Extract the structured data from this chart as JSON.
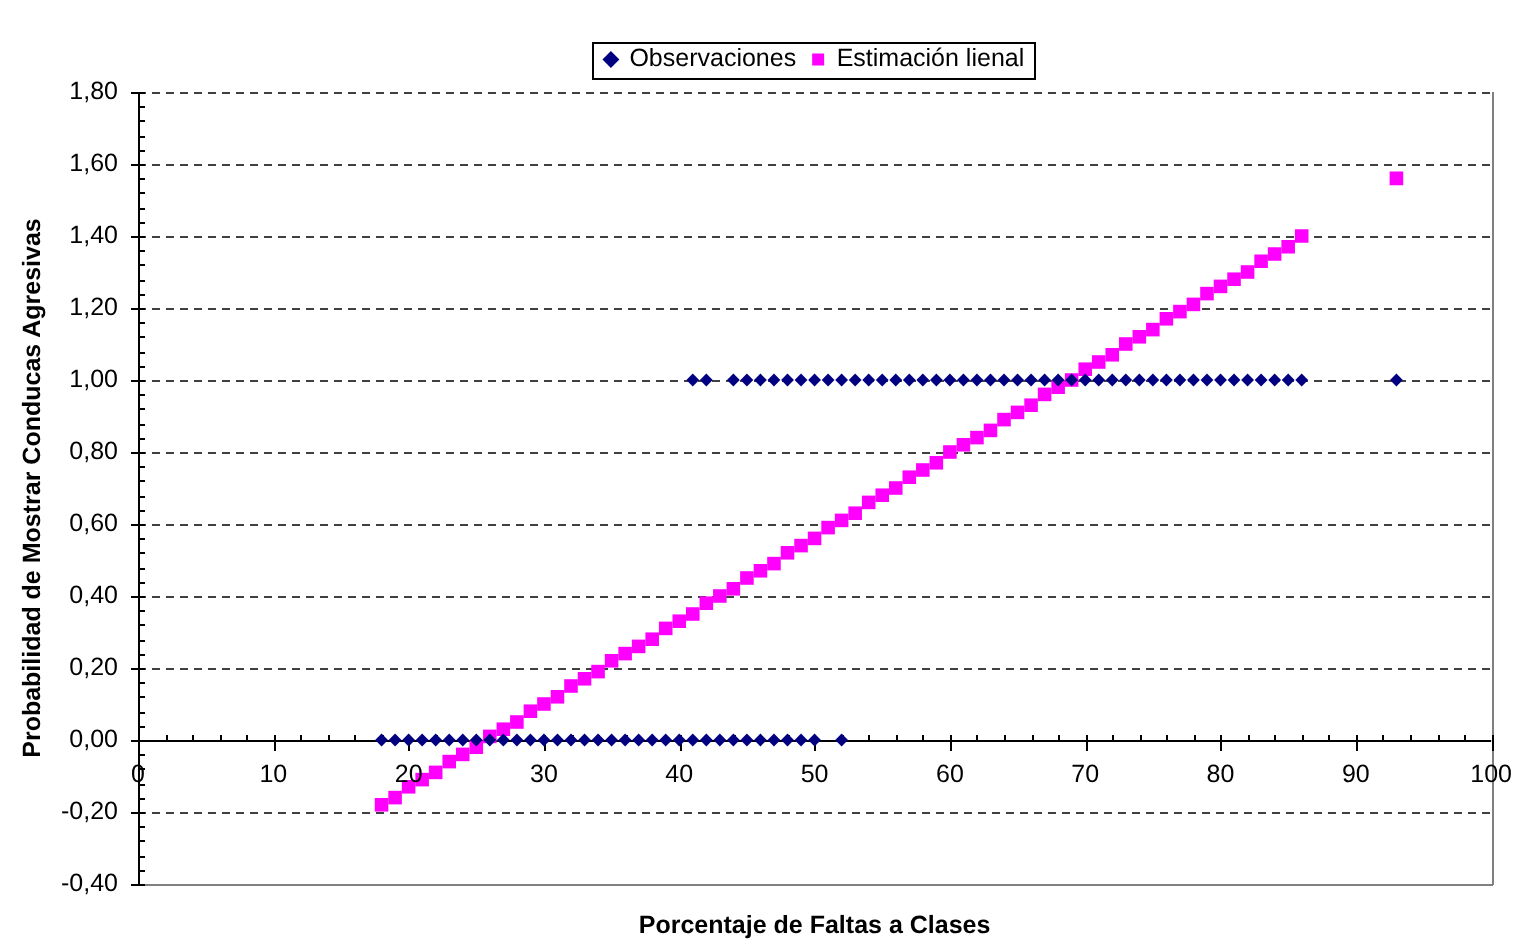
{
  "chart_data": {
    "type": "scatter",
    "legend": "top",
    "grid": "y",
    "xlabel": "Porcentaje de Faltas a Clases",
    "ylabel": "Probabilidad de Mostrar Conducas Agresivas",
    "xlim": [
      0,
      100
    ],
    "ylim": [
      -0.4,
      1.8
    ],
    "xticks": [
      0,
      {
        "value": 2,
        "label": null
      },
      {
        "value": 4,
        "label": null
      },
      {
        "value": 6,
        "label": null
      },
      {
        "value": 8,
        "label": null
      },
      10,
      {
        "value": 12,
        "label": null
      },
      {
        "value": 14,
        "label": null
      },
      {
        "value": 16,
        "label": null
      },
      {
        "value": 18,
        "label": null
      },
      20,
      {
        "value": 22,
        "label": null
      },
      {
        "value": 24,
        "label": null
      },
      {
        "value": 26,
        "label": null
      },
      {
        "value": 28,
        "label": null
      },
      30,
      {
        "value": 32,
        "label": null
      },
      {
        "value": 34,
        "label": null
      },
      {
        "value": 36,
        "label": null
      },
      {
        "value": 38,
        "label": null
      },
      40,
      {
        "value": 42,
        "label": null
      },
      {
        "value": 44,
        "label": null
      },
      {
        "value": 46,
        "label": null
      },
      {
        "value": 48,
        "label": null
      },
      50,
      {
        "value": 52,
        "label": null
      },
      {
        "value": 54,
        "label": null
      },
      {
        "value": 56,
        "label": null
      },
      {
        "value": 58,
        "label": null
      },
      60,
      {
        "value": 62,
        "label": null
      },
      {
        "value": 64,
        "label": null
      },
      {
        "value": 66,
        "label": null
      },
      {
        "value": 68,
        "label": null
      },
      70,
      {
        "value": 72,
        "label": null
      },
      {
        "value": 74,
        "label": null
      },
      {
        "value": 76,
        "label": null
      },
      {
        "value": 78,
        "label": null
      },
      80,
      {
        "value": 82,
        "label": null
      },
      {
        "value": 84,
        "label": null
      },
      {
        "value": 86,
        "label": null
      },
      {
        "value": 88,
        "label": null
      },
      90,
      {
        "value": 92,
        "label": null
      },
      {
        "value": 94,
        "label": null
      },
      {
        "value": 96,
        "label": null
      },
      {
        "value": 98,
        "label": null
      },
      100
    ],
    "yticks": [
      {
        "value": -0.4,
        "label": "-0,40"
      },
      {
        "value": -0.36,
        "label": null
      },
      {
        "value": -0.32,
        "label": null
      },
      {
        "value": -0.28,
        "label": null
      },
      {
        "value": -0.24,
        "label": null
      },
      {
        "value": -0.2,
        "label": "-0,20"
      },
      {
        "value": -0.16,
        "label": null
      },
      {
        "value": -0.12,
        "label": null
      },
      {
        "value": -0.08,
        "label": null
      },
      {
        "value": -0.04,
        "label": null
      },
      {
        "value": 0,
        "label": "0,00"
      },
      {
        "value": 0.04,
        "label": null
      },
      {
        "value": 0.08,
        "label": null
      },
      {
        "value": 0.12,
        "label": null
      },
      {
        "value": 0.16,
        "label": null
      },
      {
        "value": 0.2,
        "label": "0,20"
      },
      {
        "value": 0.24,
        "label": null
      },
      {
        "value": 0.28,
        "label": null
      },
      {
        "value": 0.32,
        "label": null
      },
      {
        "value": 0.36,
        "label": null
      },
      {
        "value": 0.4,
        "label": "0,40"
      },
      {
        "value": 0.44,
        "label": null
      },
      {
        "value": 0.48,
        "label": null
      },
      {
        "value": 0.52,
        "label": null
      },
      {
        "value": 0.56,
        "label": null
      },
      {
        "value": 0.6,
        "label": "0,60"
      },
      {
        "value": 0.64,
        "label": null
      },
      {
        "value": 0.68,
        "label": null
      },
      {
        "value": 0.72,
        "label": null
      },
      {
        "value": 0.76,
        "label": null
      },
      {
        "value": 0.8,
        "label": "0,80"
      },
      {
        "value": 0.84,
        "label": null
      },
      {
        "value": 0.88,
        "label": null
      },
      {
        "value": 0.92,
        "label": null
      },
      {
        "value": 0.96,
        "label": null
      },
      {
        "value": 1,
        "label": "1,00"
      },
      {
        "value": 1.04,
        "label": null
      },
      {
        "value": 1.08,
        "label": null
      },
      {
        "value": 1.12,
        "label": null
      },
      {
        "value": 1.16,
        "label": null
      },
      {
        "value": 1.2,
        "label": "1,20"
      },
      {
        "value": 1.24,
        "label": null
      },
      {
        "value": 1.28,
        "label": null
      },
      {
        "value": 1.32,
        "label": null
      },
      {
        "value": 1.36,
        "label": null
      },
      {
        "value": 1.4,
        "label": "1,40"
      },
      {
        "value": 1.44,
        "label": null
      },
      {
        "value": 1.48,
        "label": null
      },
      {
        "value": 1.52,
        "label": null
      },
      {
        "value": 1.56,
        "label": null
      },
      {
        "value": 1.6,
        "label": "1,60"
      },
      {
        "value": 1.64,
        "label": null
      },
      {
        "value": 1.68,
        "label": null
      },
      {
        "value": 1.72,
        "label": null
      },
      {
        "value": 1.76,
        "label": null
      },
      {
        "value": 1.8,
        "label": "1,80"
      }
    ],
    "series": [
      {
        "name": "Observaciones",
        "color": "#000080",
        "marker": "diamond",
        "x": [
          18,
          19,
          20,
          21,
          22,
          23,
          24,
          25,
          26,
          27,
          28,
          29,
          30,
          31,
          32,
          33,
          34,
          35,
          36,
          37,
          38,
          39,
          40,
          41,
          42,
          43,
          44,
          45,
          46,
          47,
          48,
          49,
          50,
          52,
          41,
          42,
          44,
          45,
          46,
          47,
          48,
          49,
          50,
          51,
          52,
          53,
          54,
          55,
          56,
          57,
          58,
          59,
          60,
          61,
          62,
          63,
          64,
          65,
          66,
          67,
          68,
          69,
          70,
          71,
          72,
          73,
          74,
          75,
          76,
          77,
          78,
          79,
          80,
          81,
          82,
          83,
          84,
          85,
          86,
          93
        ],
        "values": [
          0,
          0,
          0,
          0,
          0,
          0,
          0,
          0,
          0,
          0,
          0,
          0,
          0,
          0,
          0,
          0,
          0,
          0,
          0,
          0,
          0,
          0,
          0,
          0,
          0,
          0,
          0,
          0,
          0,
          0,
          0,
          0,
          0,
          0,
          1,
          1,
          1,
          1,
          1,
          1,
          1,
          1,
          1,
          1,
          1,
          1,
          1,
          1,
          1,
          1,
          1,
          1,
          1,
          1,
          1,
          1,
          1,
          1,
          1,
          1,
          1,
          1,
          1,
          1,
          1,
          1,
          1,
          1,
          1,
          1,
          1,
          1,
          1,
          1,
          1,
          1,
          1,
          1,
          1,
          1
        ]
      },
      {
        "name": "Estimación lienal",
        "color": "#ff00ff",
        "marker": "square",
        "x": [
          18,
          19,
          20,
          21,
          22,
          23,
          24,
          25,
          26,
          27,
          28,
          29,
          30,
          31,
          32,
          33,
          34,
          35,
          36,
          37,
          38,
          39,
          40,
          41,
          42,
          43,
          44,
          45,
          46,
          47,
          48,
          49,
          50,
          51,
          52,
          53,
          54,
          55,
          56,
          57,
          58,
          59,
          60,
          61,
          62,
          63,
          64,
          65,
          66,
          67,
          68,
          69,
          70,
          71,
          72,
          73,
          74,
          75,
          76,
          77,
          78,
          79,
          80,
          81,
          82,
          83,
          84,
          85,
          86,
          93
        ],
        "values": [
          -0.18,
          -0.16,
          -0.13,
          -0.11,
          -0.09,
          -0.06,
          -0.04,
          -0.02,
          0.01,
          0.03,
          0.05,
          0.08,
          0.1,
          0.12,
          0.15,
          0.17,
          0.19,
          0.22,
          0.24,
          0.26,
          0.28,
          0.31,
          0.33,
          0.35,
          0.38,
          0.4,
          0.42,
          0.45,
          0.47,
          0.49,
          0.52,
          0.54,
          0.56,
          0.59,
          0.61,
          0.63,
          0.66,
          0.68,
          0.7,
          0.73,
          0.75,
          0.77,
          0.8,
          0.82,
          0.84,
          0.86,
          0.89,
          0.91,
          0.93,
          0.96,
          0.98,
          1,
          1.03,
          1.05,
          1.07,
          1.1,
          1.12,
          1.14,
          1.17,
          1.19,
          1.21,
          1.24,
          1.26,
          1.28,
          1.3,
          1.33,
          1.35,
          1.37,
          1.4,
          1.56
        ]
      }
    ]
  }
}
